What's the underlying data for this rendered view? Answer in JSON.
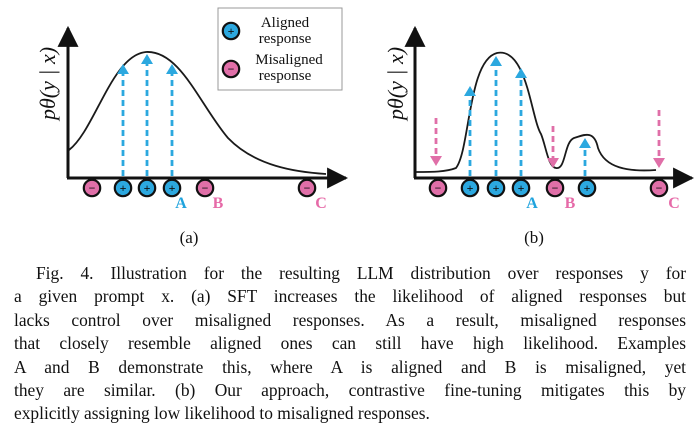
{
  "legend": {
    "aligned_line1": "Aligned",
    "aligned_line2": "response",
    "misaligned_line1": "Misaligned",
    "misaligned_line2": "response",
    "plus_symbol": "+",
    "minus_symbol": "−"
  },
  "y_axis_label": "pθ(y | x)",
  "panels": [
    {
      "label": "(a)",
      "point_labels": {
        "A": "A",
        "B": "B",
        "C": "C"
      }
    },
    {
      "label": "(b)",
      "point_labels": {
        "A": "A",
        "B": "B",
        "C": "C"
      }
    }
  ],
  "caption": {
    "lines": [
      "Fig. 4.  Illustration for the resulting LLM distribution over responses y for",
      "a given prompt x. (a) SFT increases the likelihood of aligned responses but",
      "lacks control over misaligned responses. As a result, misaligned responses",
      "that closely resemble aligned ones can still have high likelihood. Examples",
      "A and B demonstrate this, where A is aligned and B is misaligned, yet",
      "they are similar. (b) Our approach, contrastive fine-tuning mitigates this by",
      "explicitly assigning low likelihood to misaligned responses."
    ]
  },
  "colors": {
    "aligned": "#2ca8df",
    "misaligned": "#e06fa8",
    "label_aligned": "#1fa3dd",
    "label_misaligned": "#e66aa8",
    "curve": "#1a1a1a"
  }
}
